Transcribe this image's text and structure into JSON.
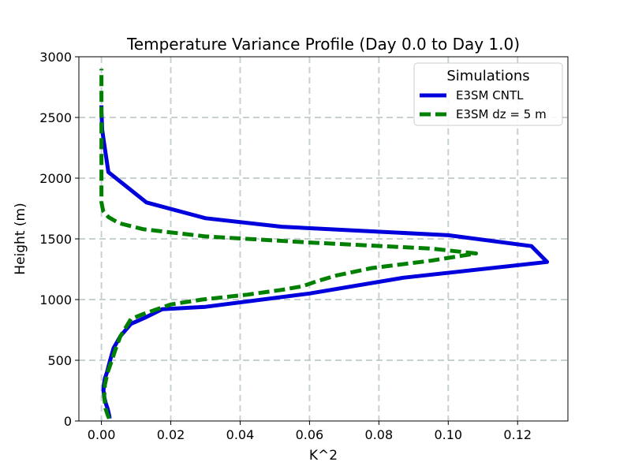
{
  "chart_data": {
    "type": "line",
    "title": "Temperature Variance Profile (Day 0.0 to Day 1.0)",
    "xlabel": "K^2",
    "ylabel": "Height (m)",
    "xlim": [
      -0.0065,
      0.1345
    ],
    "ylim": [
      0,
      3000
    ],
    "xticks": [
      0.0,
      0.02,
      0.04,
      0.06,
      0.08,
      0.1,
      0.12
    ],
    "xtick_labels": [
      "0.00",
      "0.02",
      "0.04",
      "0.06",
      "0.08",
      "0.10",
      "0.12"
    ],
    "yticks": [
      0,
      500,
      1000,
      1500,
      2000,
      2500,
      3000
    ],
    "ytick_labels": [
      "0",
      "500",
      "1000",
      "1500",
      "2000",
      "2500",
      "3000"
    ],
    "grid": true,
    "legend": {
      "title": "Simulations",
      "position": "upper right"
    },
    "series": [
      {
        "name": "E3SM CNTL",
        "color": "#0000dd",
        "style": "solid",
        "x": [
          0.0024,
          0.0022,
          0.0018,
          0.0012,
          0.0008,
          0.0006,
          0.0007,
          0.001,
          0.0016,
          0.0025,
          0.0035,
          0.0055,
          0.0085,
          0.0125,
          0.0175,
          0.03,
          0.06,
          0.087,
          0.1285,
          0.124,
          0.1,
          0.052,
          0.03,
          0.013,
          0.002,
          0.0007,
          0.0002,
          0.0001,
          0.0,
          0.0
        ],
        "y": [
          20,
          50,
          100,
          150,
          200,
          250,
          300,
          350,
          400,
          500,
          600,
          700,
          800,
          850,
          920,
          940,
          1050,
          1180,
          1310,
          1440,
          1530,
          1600,
          1670,
          1800,
          2050,
          2300,
          2400,
          2500,
          2550,
          2600
        ]
      },
      {
        "name": "E3SM dz = 5 m",
        "color": "#008000",
        "style": "dashed",
        "x": [
          0.0022,
          0.0018,
          0.0012,
          0.0008,
          0.001,
          0.0018,
          0.003,
          0.0042,
          0.0055,
          0.0068,
          0.0085,
          0.012,
          0.016,
          0.02,
          0.029,
          0.042,
          0.052,
          0.058,
          0.062,
          0.068,
          0.078,
          0.095,
          0.108,
          0.095,
          0.06,
          0.03,
          0.012,
          0.005,
          0.002,
          0.0005,
          0.0,
          0.0
        ],
        "y": [
          20,
          50,
          100,
          200,
          300,
          400,
          500,
          600,
          700,
          760,
          840,
          880,
          920,
          960,
          1000,
          1040,
          1080,
          1110,
          1150,
          1200,
          1260,
          1320,
          1380,
          1420,
          1470,
          1520,
          1580,
          1630,
          1680,
          1730,
          1800,
          2900
        ]
      }
    ]
  }
}
